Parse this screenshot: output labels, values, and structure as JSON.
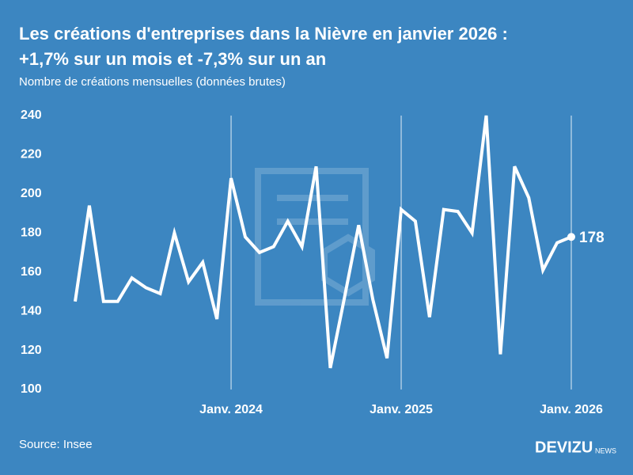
{
  "chart_data": {
    "type": "line",
    "title": [
      "Les créations d'entreprises dans la Nièvre en janvier 2026 :",
      "+1,7% sur un mois et -7,3% sur un an"
    ],
    "subtitle": "Nombre de créations mensuelles (données brutes)",
    "source": "Source: Insee",
    "brand": "DEVIZU",
    "brand_suffix": "NEWS",
    "categories": [
      null,
      null,
      null,
      null,
      null,
      null,
      null,
      null,
      null,
      null,
      null,
      "Janv. 2024",
      null,
      null,
      null,
      null,
      null,
      null,
      null,
      null,
      null,
      null,
      null,
      "Janv. 2025",
      null,
      null,
      null,
      null,
      null,
      null,
      null,
      null,
      null,
      null,
      null,
      "Janv. 2026"
    ],
    "series": [
      {
        "name": "Créations",
        "color": "#ffffff",
        "values": [
          145,
          194,
          145,
          145,
          157,
          152,
          149,
          180,
          155,
          165,
          136,
          208,
          178,
          170,
          173,
          186,
          173,
          214,
          111,
          147,
          184,
          146,
          116,
          192,
          186,
          137,
          192,
          191,
          180,
          240,
          118,
          214,
          198,
          161,
          175,
          178
        ]
      }
    ],
    "ylim": [
      100,
      240
    ],
    "yticks": [
      100,
      120,
      140,
      160,
      180,
      200,
      220,
      240
    ],
    "last_value_label": true
  }
}
